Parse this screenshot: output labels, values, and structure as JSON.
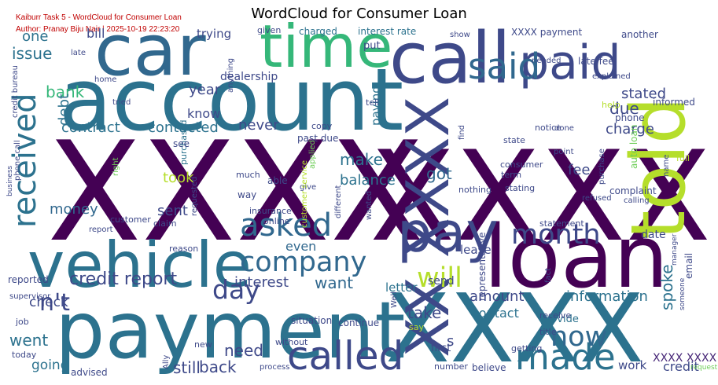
{
  "watermark": {
    "line1": "Kaiburr Task 5 - WordCloud for Consumer Loan",
    "line2": "Author: Pranay Biju Nair | 2025-10-19 22:23:20"
  },
  "chart_data": {
    "type": "wordcloud",
    "title": "WordCloud for Consumer Loan",
    "palette": [
      "#440154",
      "#482878",
      "#3e4989",
      "#31688e",
      "#26828e",
      "#1f9e89",
      "#35b779",
      "#6ece58",
      "#b5de2b",
      "#fde725"
    ],
    "words": [
      {
        "text": "XXXX",
        "weight": 1.0,
        "color": "#440154"
      },
      {
        "text": "XXXX",
        "weight": 0.98,
        "color": "#440154"
      },
      {
        "text": "XXXX",
        "weight": 0.8,
        "color": "#2c728e"
      },
      {
        "text": "account",
        "weight": 0.78,
        "color": "#2c728e"
      },
      {
        "text": "car",
        "weight": 0.76,
        "color": "#31688e"
      },
      {
        "text": "payment",
        "weight": 0.82,
        "color": "#2c728e"
      },
      {
        "text": "loan",
        "weight": 0.75,
        "color": "#440154"
      },
      {
        "text": "vehicle",
        "weight": 0.62,
        "color": "#2c728e"
      },
      {
        "text": "call",
        "weight": 0.62,
        "color": "#3e4989"
      },
      {
        "text": "time",
        "weight": 0.58,
        "color": "#35b779"
      },
      {
        "text": "told",
        "weight": 0.58,
        "color": "#b5de2b"
      },
      {
        "text": "XX XXXX",
        "weight": 0.56,
        "color": "#3e4989"
      },
      {
        "text": "XXXX XXXX",
        "weight": 0.55,
        "color": "#482878"
      },
      {
        "text": "pay",
        "weight": 0.5,
        "color": "#3e4989"
      },
      {
        "text": "paid",
        "weight": 0.42,
        "color": "#3e4989"
      },
      {
        "text": "called",
        "weight": 0.36,
        "color": "#3e4989"
      },
      {
        "text": "made",
        "weight": 0.34,
        "color": "#2c728e"
      },
      {
        "text": "received",
        "weight": 0.33,
        "color": "#2c728e"
      },
      {
        "text": "said",
        "weight": 0.33,
        "color": "#31688e"
      },
      {
        "text": "asked",
        "weight": 0.27,
        "color": "#31688e"
      },
      {
        "text": "company",
        "weight": 0.26,
        "color": "#31688e"
      },
      {
        "text": "month",
        "weight": 0.25,
        "color": "#3e4989"
      },
      {
        "text": "will",
        "weight": 0.25,
        "color": "#b5de2b"
      },
      {
        "text": "day",
        "weight": 0.23,
        "color": "#3e4989"
      },
      {
        "text": "now",
        "weight": 0.22,
        "color": "#31688e"
      },
      {
        "text": "n't",
        "weight": 0.22,
        "color": "#3e4989"
      },
      {
        "text": "XXXX payment",
        "weight": 0.06,
        "color": "#3e4989"
      },
      {
        "text": "bill",
        "weight": 0.09,
        "color": "#3e4989"
      },
      {
        "text": "one",
        "weight": 0.11,
        "color": "#2c728e"
      },
      {
        "text": "trying",
        "weight": 0.09,
        "color": "#3e4989"
      },
      {
        "text": "given",
        "weight": 0.06,
        "color": "#3e4989"
      },
      {
        "text": "charged",
        "weight": 0.07,
        "color": "#2c728e"
      },
      {
        "text": "interest rate",
        "weight": 0.07,
        "color": "#2c728e"
      },
      {
        "text": "put",
        "weight": 0.07,
        "color": "#3e4989"
      },
      {
        "text": "show",
        "weight": 0.05,
        "color": "#3e4989"
      },
      {
        "text": "another",
        "weight": 0.06,
        "color": "#3e4989"
      },
      {
        "text": "issue",
        "weight": 0.13,
        "color": "#2c728e"
      },
      {
        "text": "bank",
        "weight": 0.13,
        "color": "#35b779"
      },
      {
        "text": "debt",
        "weight": 0.11,
        "color": "#2c728e"
      },
      {
        "text": "year",
        "weight": 0.11,
        "color": "#3e4989"
      },
      {
        "text": "dealership",
        "weight": 0.08,
        "color": "#3e4989"
      },
      {
        "text": "stated",
        "weight": 0.1,
        "color": "#3e4989"
      },
      {
        "text": "due",
        "weight": 0.12,
        "color": "#3e4989"
      },
      {
        "text": "charge",
        "weight": 0.12,
        "color": "#3e4989"
      },
      {
        "text": "contract",
        "weight": 0.12,
        "color": "#2c728e"
      },
      {
        "text": "contacted",
        "weight": 0.13,
        "color": "#2c728e"
      },
      {
        "text": "never",
        "weight": 0.12,
        "color": "#3e4989"
      },
      {
        "text": "paying",
        "weight": 0.1,
        "color": "#2c728e"
      },
      {
        "text": "know",
        "weight": 0.09,
        "color": "#3e4989"
      },
      {
        "text": "make",
        "weight": 0.15,
        "color": "#2c728e"
      },
      {
        "text": "balance",
        "weight": 0.15,
        "color": "#2c728e"
      },
      {
        "text": "got",
        "weight": 0.15,
        "color": "#31688e"
      },
      {
        "text": "fee",
        "weight": 0.13,
        "color": "#3e4989"
      },
      {
        "text": "took",
        "weight": 0.12,
        "color": "#b5de2b"
      },
      {
        "text": "purchased",
        "weight": 0.07,
        "color": "#2c728e"
      },
      {
        "text": "take",
        "weight": 0.13,
        "color": "#3e4989"
      },
      {
        "text": "money",
        "weight": 0.13,
        "color": "#31688e"
      },
      {
        "text": "sent",
        "weight": 0.12,
        "color": "#3e4989"
      },
      {
        "text": "even",
        "weight": 0.12,
        "color": "#31688e"
      },
      {
        "text": "date",
        "weight": 0.09,
        "color": "#3e4989"
      },
      {
        "text": "lease",
        "weight": 0.09,
        "color": "#3e4989"
      },
      {
        "text": "credit report",
        "weight": 0.15,
        "color": "#3e4989"
      },
      {
        "text": "interest",
        "weight": 0.15,
        "color": "#3e4989"
      },
      {
        "text": "want",
        "weight": 0.13,
        "color": "#31688e"
      },
      {
        "text": "amount",
        "weight": 0.13,
        "color": "#3e4989"
      },
      {
        "text": "information",
        "weight": 0.15,
        "color": "#2c728e"
      },
      {
        "text": "check",
        "weight": 0.12,
        "color": "#3e4989"
      },
      {
        "text": "contact",
        "weight": 0.09,
        "color": "#2c728e"
      },
      {
        "text": "went",
        "weight": 0.1,
        "color": "#2c728e"
      },
      {
        "text": "going",
        "weight": 0.12,
        "color": "#2c728e"
      },
      {
        "text": "need",
        "weight": 0.11,
        "color": "#3e4989"
      },
      {
        "text": "back",
        "weight": 0.13,
        "color": "#3e4989"
      },
      {
        "text": "still",
        "weight": 0.13,
        "color": "#3e4989"
      },
      {
        "text": "s",
        "weight": 0.13,
        "color": "#3e4989"
      },
      {
        "text": "credit",
        "weight": 0.12,
        "color": "#3e4989"
      },
      {
        "text": "work",
        "weight": 0.12,
        "color": "#3e4989"
      },
      {
        "text": "spoke",
        "weight": 0.08,
        "color": "#2c728e"
      },
      {
        "text": "letter",
        "weight": 0.1,
        "color": "#2c728e"
      },
      {
        "text": "send",
        "weight": 0.09,
        "color": "#3e4989"
      },
      {
        "text": "reported",
        "weight": 0.08,
        "color": "#3e4989"
      },
      {
        "text": "advised",
        "weight": 0.07,
        "color": "#3e4989"
      },
      {
        "text": "late fee",
        "weight": 0.06,
        "color": "#3e4989"
      },
      {
        "text": "informed",
        "weight": 0.06,
        "color": "#3e4989"
      },
      {
        "text": "help",
        "weight": 0.07,
        "color": "#b5de2b"
      },
      {
        "text": "phone",
        "weight": 0.06,
        "color": "#3e4989"
      },
      {
        "text": "auto loan",
        "weight": 0.05,
        "color": "#6ece58"
      },
      {
        "text": "complaint",
        "weight": 0.06,
        "color": "#3e4989"
      },
      {
        "text": "full",
        "weight": 0.07,
        "color": "#b5de2b"
      },
      {
        "text": "email",
        "weight": 0.05,
        "color": "#3e4989"
      },
      {
        "text": "representative",
        "weight": 0.06,
        "color": "#3e4989"
      },
      {
        "text": "provide",
        "weight": 0.06,
        "color": "#2c728e"
      },
      {
        "text": "request",
        "weight": 0.06,
        "color": "#6ece58"
      },
      {
        "text": "title",
        "weight": 0.06,
        "color": "#3e4989"
      },
      {
        "text": "receive",
        "weight": 0.05,
        "color": "#3e4989"
      },
      {
        "text": "getting",
        "weight": 0.05,
        "color": "#3e4989"
      },
      {
        "text": "believe",
        "weight": 0.05,
        "color": "#3e4989"
      },
      {
        "text": "number",
        "weight": 0.05,
        "color": "#3e4989"
      },
      {
        "text": "first",
        "weight": 0.05,
        "color": "#3e4989"
      },
      {
        "text": "say",
        "weight": 0.06,
        "color": "#b5de2b"
      },
      {
        "text": "situation",
        "weight": 0.05,
        "color": "#3e4989"
      },
      {
        "text": "without",
        "weight": 0.06,
        "color": "#3e4989"
      },
      {
        "text": "process",
        "weight": 0.05,
        "color": "#3e4989"
      },
      {
        "text": "continue",
        "weight": 0.05,
        "color": "#3e4989"
      },
      {
        "text": "fact",
        "weight": 0.05,
        "color": "#3e4989"
      },
      {
        "text": "Well",
        "weight": 0.06,
        "color": "#3e4989"
      },
      {
        "text": "statement",
        "weight": 0.05,
        "color": "#3e4989"
      },
      {
        "text": "refused",
        "weight": 0.05,
        "color": "#3e4989"
      },
      {
        "text": "calling",
        "weight": 0.05,
        "color": "#3e4989"
      },
      {
        "text": "customer",
        "weight": 0.05,
        "color": "#3e4989"
      },
      {
        "text": "claim",
        "weight": 0.05,
        "color": "#3e4989"
      },
      {
        "text": "report",
        "weight": 0.06,
        "color": "#3e4989"
      },
      {
        "text": "insurance",
        "weight": 0.05,
        "color": "#3e4989"
      },
      {
        "text": "online",
        "weight": 0.05,
        "color": "#3e4989"
      },
      {
        "text": "reason",
        "weight": 0.05,
        "color": "#3e4989"
      },
      {
        "text": "new",
        "weight": 0.05,
        "color": "#3e4989"
      },
      {
        "text": "job",
        "weight": 0.05,
        "color": "#3e4989"
      },
      {
        "text": "today",
        "weight": 0.05,
        "color": "#3e4989"
      },
      {
        "text": "supervisor",
        "weight": 0.05,
        "color": "#3e4989"
      },
      {
        "text": "see",
        "weight": 0.05,
        "color": "#3e4989"
      },
      {
        "text": "much",
        "weight": 0.04,
        "color": "#3e4989"
      },
      {
        "text": "way",
        "weight": 0.06,
        "color": "#3e4989"
      },
      {
        "text": "able",
        "weight": 0.05,
        "color": "#3e4989"
      },
      {
        "text": "past due",
        "weight": 0.05,
        "color": "#3e4989"
      },
      {
        "text": "give",
        "weight": 0.05,
        "color": "#3e4989"
      },
      {
        "text": "state",
        "weight": 0.05,
        "color": "#3e4989"
      },
      {
        "text": "notice",
        "weight": 0.04,
        "color": "#3e4989"
      },
      {
        "text": "done",
        "weight": 0.05,
        "color": "#3e4989"
      },
      {
        "text": "point",
        "weight": 0.05,
        "color": "#3e4989"
      },
      {
        "text": "consumer",
        "weight": 0.04,
        "color": "#3e4989"
      },
      {
        "text": "term",
        "weight": 0.04,
        "color": "#3e4989"
      },
      {
        "text": "stating",
        "weight": 0.05,
        "color": "#3e4989"
      },
      {
        "text": "nothing",
        "weight": 0.05,
        "color": "#3e4989"
      },
      {
        "text": "tell",
        "weight": 0.05,
        "color": "#3e4989"
      },
      {
        "text": "copy",
        "weight": 0.05,
        "color": "#3e4989"
      },
      {
        "text": "find",
        "weight": 0.05,
        "color": "#3e4989"
      },
      {
        "text": "needed",
        "weight": 0.04,
        "color": "#3e4989"
      },
      {
        "text": "explained",
        "weight": 0.04,
        "color": "#3e4989"
      },
      {
        "text": "anything",
        "weight": 0.04,
        "color": "#3e4989"
      },
      {
        "text": "home",
        "weight": 0.04,
        "color": "#3e4989"
      },
      {
        "text": "late",
        "weight": 0.04,
        "color": "#3e4989"
      },
      {
        "text": "credit bureau",
        "weight": 0.04,
        "color": "#3e4989"
      },
      {
        "text": "tried",
        "weight": 0.04,
        "color": "#3e4989"
      },
      {
        "text": "phone call",
        "weight": 0.04,
        "color": "#3e4989"
      },
      {
        "text": "right",
        "weight": 0.04,
        "color": "#6ece58"
      },
      {
        "text": "applied",
        "weight": 0.04,
        "color": "#6ece58"
      },
      {
        "text": "different",
        "weight": 0.04,
        "color": "#3e4989"
      },
      {
        "text": "wanted",
        "weight": 0.04,
        "color": "#3e4989"
      },
      {
        "text": "purchase",
        "weight": 0.04,
        "color": "#3e4989"
      },
      {
        "text": "name",
        "weight": 0.04,
        "color": "#3e4989"
      },
      {
        "text": "business",
        "weight": 0.04,
        "color": "#3e4989"
      },
      {
        "text": "requested",
        "weight": 0.04,
        "color": "#3e4989"
      },
      {
        "text": "customer service",
        "weight": 0.03,
        "color": "#b5de2b"
      },
      {
        "text": "Ally",
        "weight": 0.03,
        "color": "#3e4989"
      },
      {
        "text": "manager",
        "weight": 0.03,
        "color": "#3e4989"
      },
      {
        "text": "someone",
        "weight": 0.03,
        "color": "#3e4989"
      },
      {
        "text": "week",
        "weight": 0.03,
        "color": "#3e4989"
      },
      {
        "text": "problem",
        "weight": 0.03,
        "color": "#3e4989"
      }
    ]
  }
}
